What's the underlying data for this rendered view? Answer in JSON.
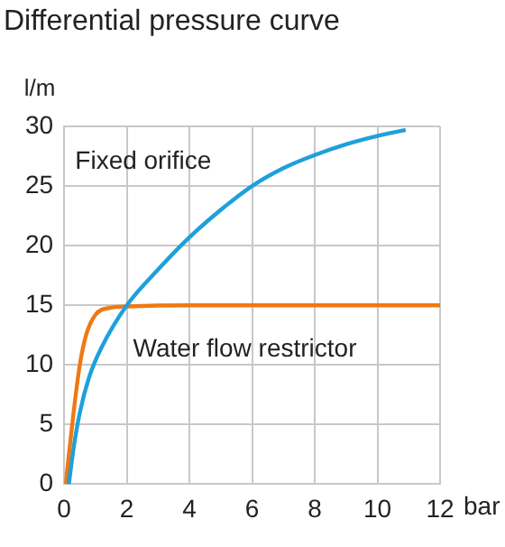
{
  "chart_data": {
    "type": "line",
    "title": "Differential pressure curve",
    "xlabel": "bar",
    "ylabel": "l/m",
    "xlim": [
      0,
      12
    ],
    "xticks": [
      0,
      2,
      4,
      6,
      8,
      10,
      12
    ],
    "ylim": [
      0,
      30
    ],
    "yticks": [
      0,
      5,
      10,
      15,
      20,
      25,
      30
    ],
    "grid": true,
    "marker": "none",
    "line_style": "solid",
    "series": [
      {
        "name": "Fixed orifice",
        "color": "#1ea0dc",
        "x": [
          0.15,
          0.3,
          0.5,
          0.8,
          1.2,
          2,
          3,
          4,
          5,
          6,
          7,
          8,
          9,
          10,
          10.9
        ],
        "values": [
          0,
          3,
          6,
          9,
          11.5,
          15,
          18,
          20.7,
          23,
          25,
          26.5,
          27.6,
          28.5,
          29.2,
          29.7
        ]
      },
      {
        "name": "Water flow restrictor",
        "color": "#f07814",
        "x": [
          0.05,
          0.3,
          0.5,
          0.7,
          1,
          1.5,
          2,
          4,
          12
        ],
        "values": [
          0,
          6,
          10,
          12.5,
          14.2,
          14.8,
          14.9,
          15,
          15
        ]
      }
    ]
  }
}
